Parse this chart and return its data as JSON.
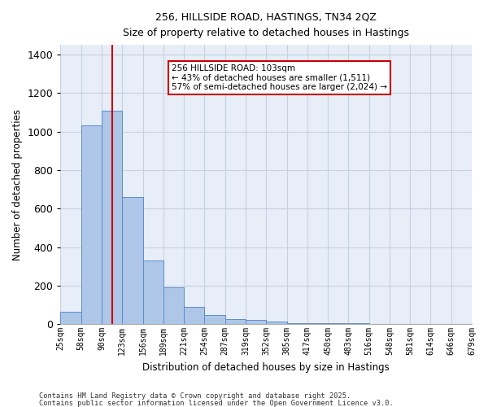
{
  "title": "256, HILLSIDE ROAD, HASTINGS, TN34 2QZ",
  "subtitle": "Size of property relative to detached houses in Hastings",
  "xlabel": "Distribution of detached houses by size in Hastings",
  "ylabel": "Number of detached properties",
  "categories": [
    "25sqm",
    "58sqm",
    "90sqm",
    "123sqm",
    "156sqm",
    "189sqm",
    "221sqm",
    "254sqm",
    "287sqm",
    "319sqm",
    "352sqm",
    "385sqm",
    "417sqm",
    "450sqm",
    "483sqm",
    "516sqm",
    "548sqm",
    "581sqm",
    "614sqm",
    "646sqm",
    "679sqm"
  ],
  "hist_values": [
    65,
    1030,
    1110,
    660,
    330,
    192,
    88,
    48,
    25,
    20,
    13,
    5,
    5,
    3,
    3,
    2,
    2,
    1,
    1,
    0
  ],
  "bar_color": "#aec6e8",
  "bar_edge_color": "#5b8dc8",
  "bg_color": "#e8eef8",
  "grid_color": "#c8d0e0",
  "vline_bin": 2.5,
  "vline_color": "#cc0000",
  "annotation_text": "256 HILLSIDE ROAD: 103sqm\n← 43% of detached houses are smaller (1,511)\n57% of semi-detached houses are larger (2,024) →",
  "annotation_box_color": "#ffffff",
  "annotation_box_edge": "#cc0000",
  "ylim": [
    0,
    1450
  ],
  "yticks": [
    0,
    200,
    400,
    600,
    800,
    1000,
    1200,
    1400
  ],
  "footer1": "Contains HM Land Registry data © Crown copyright and database right 2025.",
  "footer2": "Contains public sector information licensed under the Open Government Licence v3.0."
}
